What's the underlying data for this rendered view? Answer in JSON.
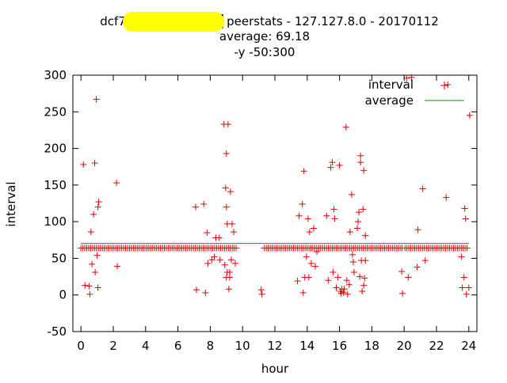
{
  "chart_data": {
    "type": "scatter",
    "title_lines": [
      "dcf77a█████████ peerstats - 127.127.8.0 - 20170112",
      "average: 69.18",
      "-y -50:300"
    ],
    "xlabel": "hour",
    "ylabel": "interval",
    "xlim": [
      -0.5,
      24.5
    ],
    "ylim": [
      -50,
      300
    ],
    "xticks": [
      0,
      2,
      4,
      6,
      8,
      10,
      12,
      14,
      16,
      18,
      20,
      22,
      24
    ],
    "yticks": [
      -50,
      0,
      50,
      100,
      150,
      200,
      250,
      300
    ],
    "legend_position": "top-right",
    "grid": false,
    "average": 69.18,
    "colors": {
      "interval": "#e00000",
      "average": "#00a000",
      "redaction": "#ffff00"
    },
    "series": [
      {
        "name": "interval",
        "style": "plus",
        "points": [
          [
            0.15,
            178
          ],
          [
            0.25,
            13
          ],
          [
            0.5,
            12
          ],
          [
            0.55,
            1
          ],
          [
            0.62,
            86
          ],
          [
            0.68,
            42
          ],
          [
            0.78,
            110
          ],
          [
            0.85,
            180
          ],
          [
            0.88,
            31
          ],
          [
            0.95,
            267
          ],
          [
            1.0,
            54
          ],
          [
            1.05,
            120
          ],
          [
            1.1,
            127
          ],
          [
            1.05,
            10
          ],
          [
            2.2,
            153
          ],
          [
            2.25,
            39
          ],
          [
            7.1,
            120
          ],
          [
            7.15,
            7
          ],
          [
            7.6,
            124
          ],
          [
            7.7,
            3
          ],
          [
            7.8,
            85
          ],
          [
            7.85,
            43
          ],
          [
            8.1,
            48
          ],
          [
            8.25,
            52
          ],
          [
            8.35,
            78
          ],
          [
            8.55,
            78
          ],
          [
            8.6,
            48
          ],
          [
            8.85,
            233
          ],
          [
            8.9,
            41
          ],
          [
            8.95,
            146
          ],
          [
            9.0,
            24
          ],
          [
            9.05,
            31
          ],
          [
            9.0,
            120
          ],
          [
            9.1,
            233
          ],
          [
            9.0,
            193
          ],
          [
            9.05,
            97
          ],
          [
            9.15,
            8
          ],
          [
            9.2,
            24
          ],
          [
            9.2,
            31
          ],
          [
            9.25,
            141
          ],
          [
            9.3,
            48
          ],
          [
            9.35,
            97
          ],
          [
            9.45,
            86
          ],
          [
            9.55,
            43
          ],
          [
            11.15,
            7
          ],
          [
            11.2,
            1
          ],
          [
            13.4,
            19
          ],
          [
            13.5,
            108
          ],
          [
            13.7,
            124
          ],
          [
            13.75,
            3
          ],
          [
            13.8,
            169
          ],
          [
            13.85,
            24
          ],
          [
            13.95,
            52
          ],
          [
            14.05,
            104
          ],
          [
            14.1,
            24
          ],
          [
            14.15,
            86
          ],
          [
            14.25,
            43
          ],
          [
            14.4,
            91
          ],
          [
            14.5,
            39
          ],
          [
            14.6,
            59
          ],
          [
            15.2,
            108
          ],
          [
            15.3,
            20
          ],
          [
            15.45,
            174
          ],
          [
            15.55,
            181
          ],
          [
            15.6,
            31
          ],
          [
            15.65,
            117
          ],
          [
            15.7,
            104
          ],
          [
            15.8,
            10
          ],
          [
            15.9,
            24
          ],
          [
            16.0,
            177
          ],
          [
            16.05,
            5
          ],
          [
            16.1,
            2
          ],
          [
            16.15,
            8
          ],
          [
            16.25,
            3
          ],
          [
            16.3,
            8
          ],
          [
            16.4,
            229
          ],
          [
            16.45,
            20
          ],
          [
            16.5,
            1
          ],
          [
            16.6,
            14
          ],
          [
            16.65,
            86
          ],
          [
            16.75,
            137
          ],
          [
            16.8,
            55
          ],
          [
            16.85,
            45
          ],
          [
            16.9,
            31
          ],
          [
            17.1,
            91
          ],
          [
            17.15,
            100
          ],
          [
            17.2,
            113
          ],
          [
            17.25,
            25
          ],
          [
            17.3,
            190
          ],
          [
            17.3,
            181
          ],
          [
            17.35,
            47
          ],
          [
            17.4,
            5
          ],
          [
            17.45,
            117
          ],
          [
            17.5,
            13
          ],
          [
            17.5,
            170
          ],
          [
            17.55,
            23
          ],
          [
            17.6,
            47
          ],
          [
            17.6,
            81
          ],
          [
            19.85,
            32
          ],
          [
            19.9,
            2
          ],
          [
            20.15,
            296
          ],
          [
            20.25,
            24
          ],
          [
            20.45,
            297
          ],
          [
            20.8,
            38
          ],
          [
            20.85,
            89
          ],
          [
            21.15,
            145
          ],
          [
            21.3,
            47
          ],
          [
            22.6,
            133
          ],
          [
            22.7,
            287
          ],
          [
            23.55,
            52
          ],
          [
            23.6,
            10
          ],
          [
            23.7,
            24
          ],
          [
            23.75,
            118
          ],
          [
            23.8,
            104
          ],
          [
            23.85,
            1
          ],
          [
            24.0,
            10
          ],
          [
            24.05,
            245
          ]
        ],
        "baseline": {
          "value": 64,
          "segments": [
            [
              0,
              9.6
            ],
            [
              11.35,
              19.95
            ],
            [
              20.05,
              24.0
            ]
          ],
          "step": 0.12
        }
      },
      {
        "name": "average",
        "style": "line",
        "value": 69.18
      }
    ]
  }
}
